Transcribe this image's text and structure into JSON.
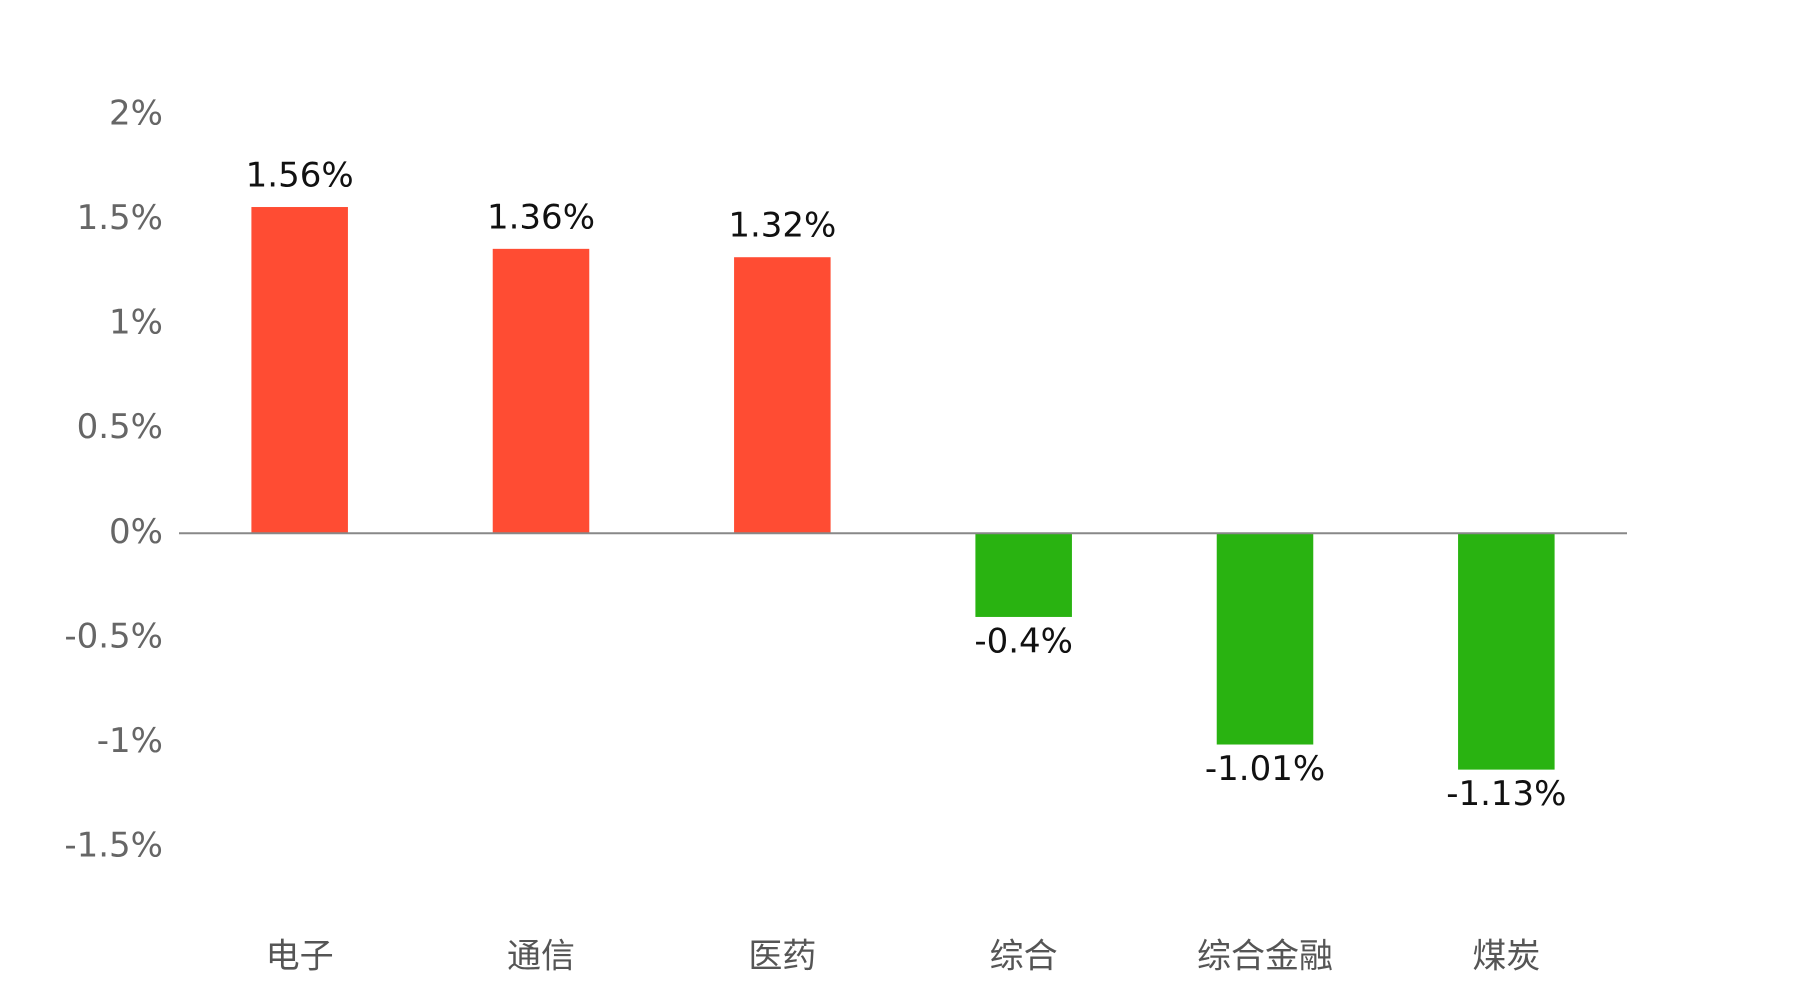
{
  "chart_data": {
    "type": "bar",
    "categories": [
      "电子",
      "通信",
      "医药",
      "综合",
      "综合金融",
      "煤炭"
    ],
    "values": [
      1.56,
      1.36,
      1.32,
      -0.4,
      -1.01,
      -1.13
    ],
    "value_labels": [
      "1.56%",
      "1.36%",
      "1.32%",
      "-0.4%",
      "-1.01%",
      "-1.13%"
    ],
    "colors": [
      "#ff4c33",
      "#ff4c33",
      "#ff4c33",
      "#29b311",
      "#29b311",
      "#29b311"
    ],
    "ylim": [
      -1.5,
      2
    ],
    "yticks": [
      {
        "value": -1.5,
        "label": "-1.5%"
      },
      {
        "value": -1,
        "label": "-1%"
      },
      {
        "value": -0.5,
        "label": "-0.5%"
      },
      {
        "value": 0,
        "label": "0%"
      },
      {
        "value": 0.5,
        "label": "0.5%"
      },
      {
        "value": 1,
        "label": "1%"
      },
      {
        "value": 1.5,
        "label": "1.5%"
      },
      {
        "value": 2,
        "label": "2%"
      }
    ],
    "grid": false
  }
}
